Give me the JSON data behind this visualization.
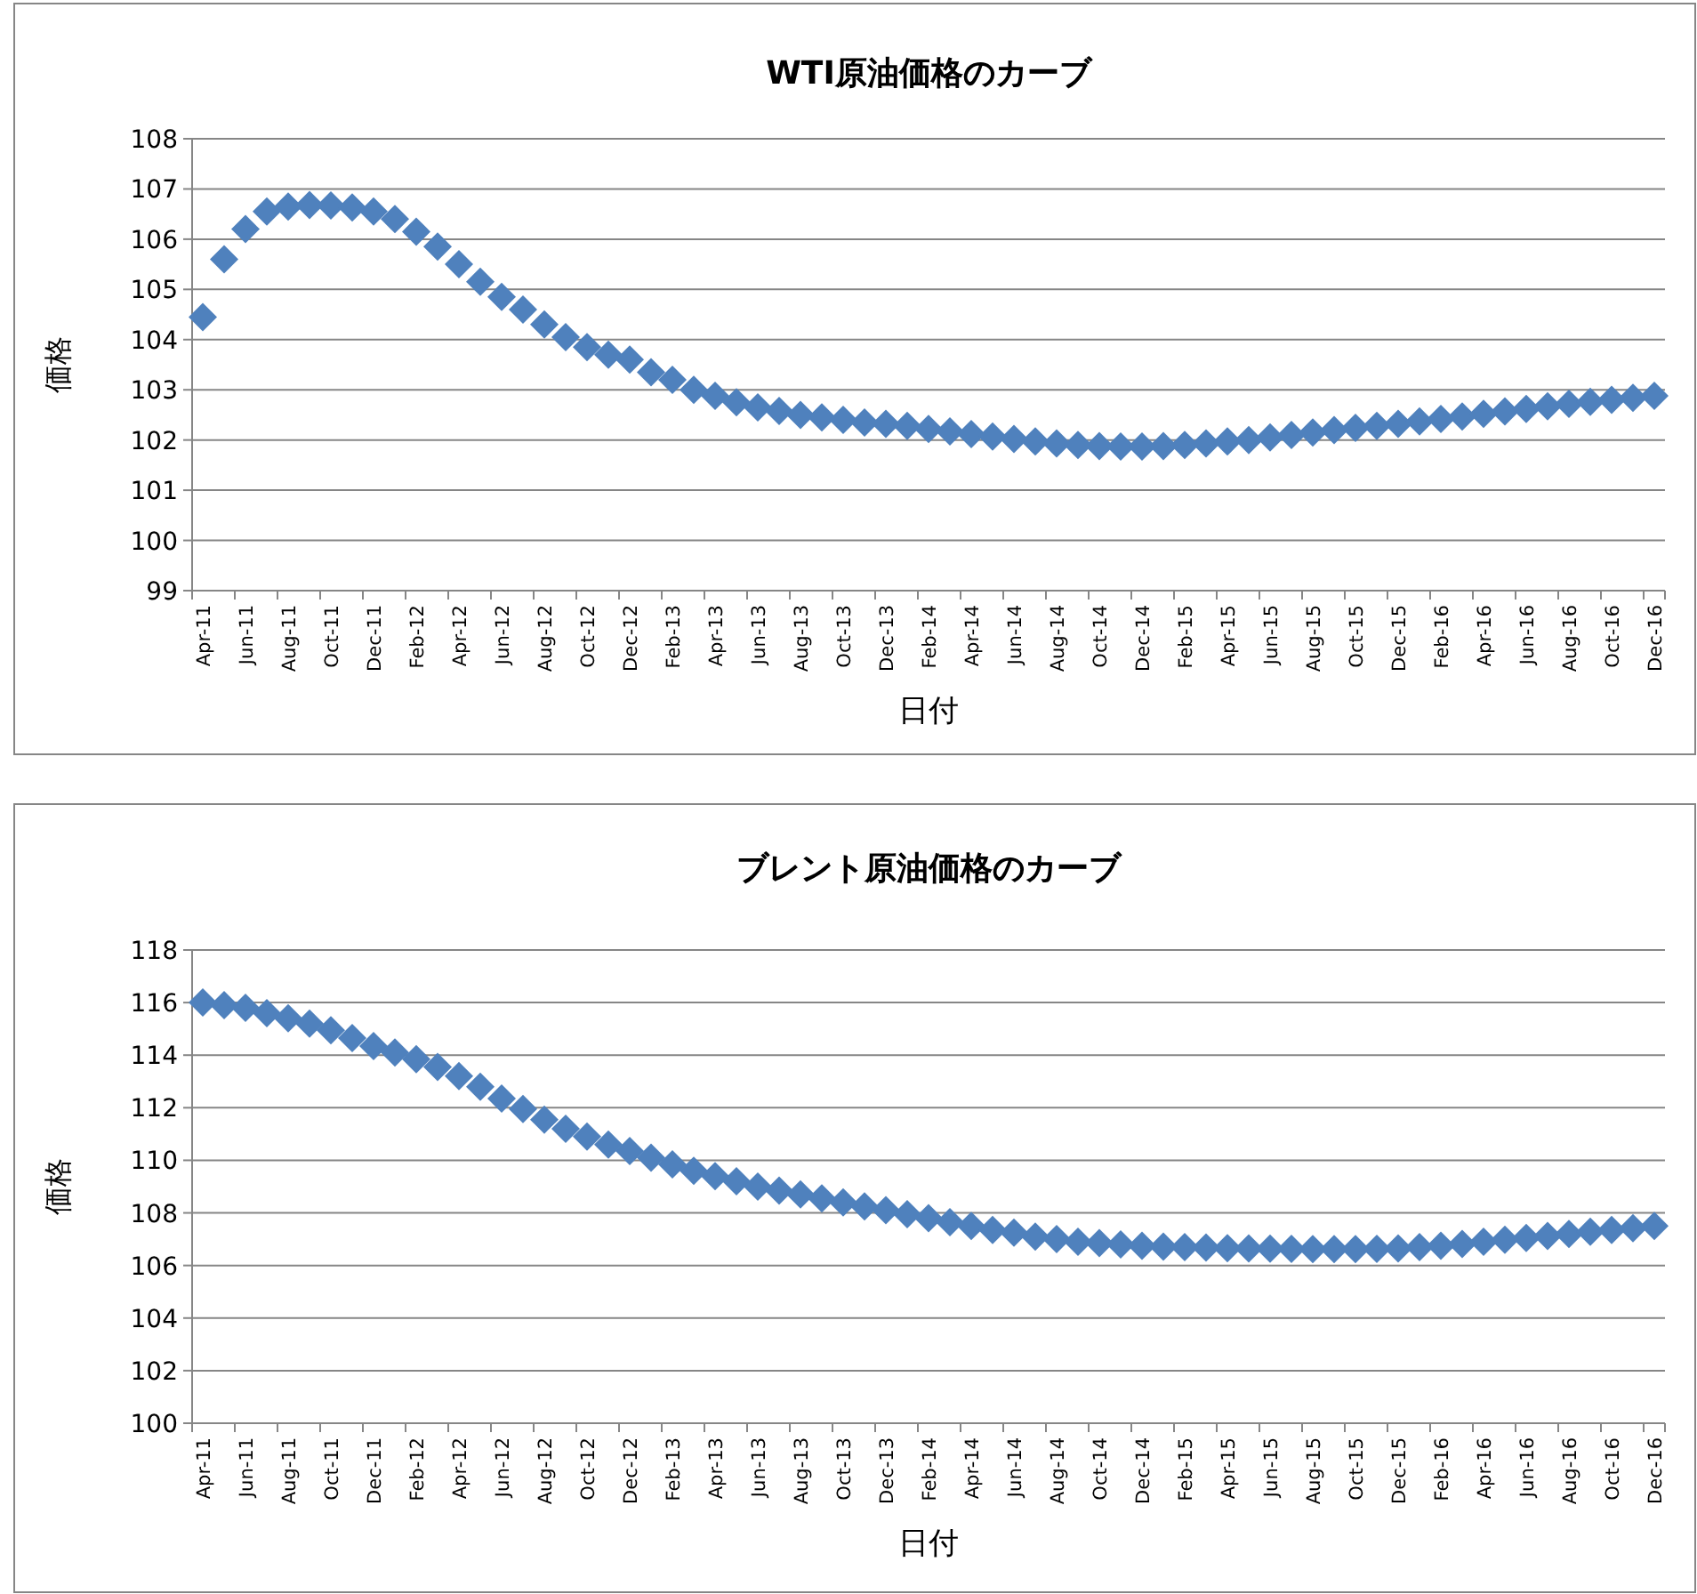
{
  "chart_data": [
    {
      "type": "scatter",
      "title": "WTI原油価格のカーブ",
      "xlabel": "日付",
      "ylabel": "価格",
      "marker": "diamond",
      "grid": "y",
      "ylim": [
        99,
        108
      ],
      "yticks": [
        99,
        100,
        101,
        102,
        103,
        104,
        105,
        106,
        107,
        108
      ],
      "categories": [
        "Apr-11",
        null,
        "Jun-11",
        null,
        "Aug-11",
        null,
        "Oct-11",
        null,
        "Dec-11",
        null,
        "Feb-12",
        null,
        "Apr-12",
        null,
        "Jun-12",
        null,
        "Aug-12",
        null,
        "Oct-12",
        null,
        "Dec-12",
        null,
        "Feb-13",
        null,
        "Apr-13",
        null,
        "Jun-13",
        null,
        "Aug-13",
        null,
        "Oct-13",
        null,
        "Dec-13",
        null,
        "Feb-14",
        null,
        "Apr-14",
        null,
        "Jun-14",
        null,
        "Aug-14",
        null,
        "Oct-14",
        null,
        "Dec-14",
        null,
        "Feb-15",
        null,
        "Apr-15",
        null,
        "Jun-15",
        null,
        "Aug-15",
        null,
        "Oct-15",
        null,
        "Dec-15",
        null,
        "Feb-16",
        null,
        "Apr-16",
        null,
        "Jun-16",
        null,
        "Aug-16",
        null,
        "Oct-16",
        null,
        "Dec-16"
      ],
      "series": [
        {
          "color": "#4f81bd",
          "values": [
            104.45,
            105.6,
            106.2,
            106.55,
            106.65,
            106.68,
            106.67,
            106.63,
            106.55,
            106.4,
            106.15,
            105.85,
            105.5,
            105.15,
            104.85,
            104.6,
            104.3,
            104.05,
            103.85,
            103.7,
            103.6,
            103.35,
            103.2,
            103.0,
            102.88,
            102.75,
            102.65,
            102.58,
            102.5,
            102.45,
            102.4,
            102.35,
            102.32,
            102.28,
            102.22,
            102.17,
            102.12,
            102.07,
            102.02,
            101.97,
            101.93,
            101.9,
            101.88,
            101.87,
            101.87,
            101.88,
            101.9,
            101.93,
            101.97,
            102.0,
            102.05,
            102.1,
            102.15,
            102.2,
            102.24,
            102.28,
            102.32,
            102.37,
            102.42,
            102.47,
            102.52,
            102.57,
            102.62,
            102.67,
            102.72,
            102.76,
            102.8,
            102.84,
            102.88
          ]
        }
      ]
    },
    {
      "type": "scatter",
      "title": "ブレント原油価格のカーブ",
      "xlabel": "日付",
      "ylabel": "価格",
      "marker": "diamond",
      "grid": "y",
      "ylim": [
        100,
        118
      ],
      "yticks": [
        100,
        102,
        104,
        106,
        108,
        110,
        112,
        114,
        116,
        118
      ],
      "categories": [
        "Apr-11",
        null,
        "Jun-11",
        null,
        "Aug-11",
        null,
        "Oct-11",
        null,
        "Dec-11",
        null,
        "Feb-12",
        null,
        "Apr-12",
        null,
        "Jun-12",
        null,
        "Aug-12",
        null,
        "Oct-12",
        null,
        "Dec-12",
        null,
        "Feb-13",
        null,
        "Apr-13",
        null,
        "Jun-13",
        null,
        "Aug-13",
        null,
        "Oct-13",
        null,
        "Dec-13",
        null,
        "Feb-14",
        null,
        "Apr-14",
        null,
        "Jun-14",
        null,
        "Aug-14",
        null,
        "Oct-14",
        null,
        "Dec-14",
        null,
        "Feb-15",
        null,
        "Apr-15",
        null,
        "Jun-15",
        null,
        "Aug-15",
        null,
        "Oct-15",
        null,
        "Dec-15",
        null,
        "Feb-16",
        null,
        "Apr-16",
        null,
        "Jun-16",
        null,
        "Aug-16",
        null,
        "Oct-16",
        null,
        "Dec-16"
      ],
      "series": [
        {
          "color": "#4f81bd",
          "values": [
            116.0,
            115.9,
            115.8,
            115.6,
            115.4,
            115.2,
            114.95,
            114.65,
            114.35,
            114.1,
            113.85,
            113.55,
            113.2,
            112.8,
            112.35,
            111.95,
            111.55,
            111.2,
            110.9,
            110.6,
            110.35,
            110.1,
            109.85,
            109.6,
            109.4,
            109.2,
            109.0,
            108.85,
            108.7,
            108.55,
            108.4,
            108.25,
            108.1,
            107.95,
            107.8,
            107.65,
            107.5,
            107.35,
            107.25,
            107.1,
            107.0,
            106.9,
            106.85,
            106.8,
            106.75,
            106.72,
            106.7,
            106.68,
            106.66,
            106.65,
            106.64,
            106.63,
            106.62,
            106.62,
            106.62,
            106.63,
            106.65,
            106.7,
            106.75,
            106.82,
            106.9,
            106.98,
            107.05,
            107.12,
            107.2,
            107.28,
            107.35,
            107.42,
            107.5
          ]
        }
      ]
    }
  ]
}
